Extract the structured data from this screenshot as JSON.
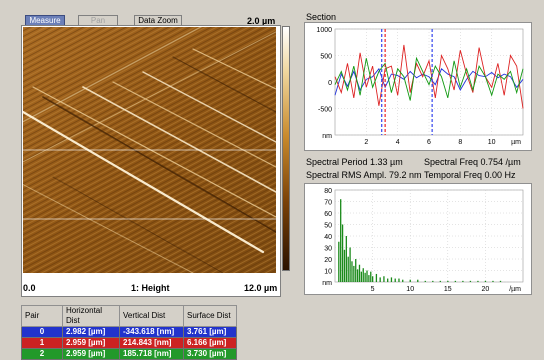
{
  "toolbar": {
    "measure_label": "Measure",
    "pan_label": "Pan",
    "data_zoom_label": "Data Zoom"
  },
  "image": {
    "scale_top": "2.0 µm",
    "x_start": "0.0",
    "channel_label": "1: Height",
    "x_end": "12.0 µm"
  },
  "section": {
    "title": "Section",
    "info": {
      "spectral_period": "Spectral Period 1.33 µm",
      "spectral_freq": "Spectral Freq 0.754 /µm",
      "spectral_rms": "Spectral RMS Ampl. 79.2 nm",
      "temporal_freq": "Temporal Freq 0.00 Hz"
    }
  },
  "chart_data": [
    {
      "type": "line",
      "title": "Section",
      "xlabel": "µm",
      "ylabel": "nm",
      "xlim": [
        0,
        12
      ],
      "ylim": [
        -1000,
        1000
      ],
      "x_ticks": [
        "2",
        "4",
        "6",
        "8",
        "10"
      ],
      "y_ticks": [
        "1000",
        "500",
        "0",
        "-500",
        "nm"
      ],
      "x": [
        0,
        0.4,
        0.8,
        1.2,
        1.6,
        2.0,
        2.4,
        2.8,
        3.2,
        3.6,
        4.0,
        4.4,
        4.8,
        5.2,
        5.6,
        6.0,
        6.4,
        6.8,
        7.2,
        7.6,
        8.0,
        8.4,
        8.8,
        9.2,
        9.6,
        10.0,
        10.4,
        10.8,
        11.2,
        11.6,
        12.0
      ],
      "series": [
        {
          "color": "#2233dd",
          "values": [
            -250,
            150,
            -80,
            200,
            -150,
            50,
            100,
            250,
            -100,
            150,
            120,
            50,
            200,
            80,
            150,
            100,
            -50,
            250,
            150,
            100,
            -150,
            50,
            200,
            120,
            100,
            180,
            80,
            150,
            100,
            -100,
            50
          ]
        },
        {
          "color": "#dd2222",
          "values": [
            100,
            -200,
            350,
            -300,
            550,
            -100,
            300,
            -450,
            250,
            300,
            -250,
            700,
            -200,
            350,
            100,
            400,
            -300,
            500,
            250,
            -150,
            600,
            150,
            -200,
            650,
            100,
            -100,
            350,
            -250,
            500,
            300,
            -500
          ]
        },
        {
          "color": "#119911",
          "values": [
            -50,
            200,
            -150,
            300,
            -250,
            450,
            -100,
            200,
            350,
            -200,
            250,
            100,
            -350,
            450,
            200,
            -50,
            300,
            100,
            -300,
            400,
            -100,
            250,
            -150,
            300,
            100,
            -250,
            150,
            50,
            200,
            -200,
            250
          ]
        }
      ],
      "markers": [
        {
          "x": 2.982,
          "color": "#3344ee"
        },
        {
          "x": 3.2,
          "color": "#ee2222"
        },
        {
          "x": 6.2,
          "color": "#3344ee"
        }
      ]
    },
    {
      "type": "bar",
      "xlabel": "/µm",
      "ylabel": "nm",
      "xlim": [
        0,
        25
      ],
      "ylim": [
        0,
        80
      ],
      "x_ticks": [
        "5",
        "10",
        "15",
        "20"
      ],
      "y_ticks": [
        "80",
        "70",
        "60",
        "50",
        "40",
        "30",
        "20",
        "10",
        "nm"
      ],
      "bars": [
        [
          0.5,
          35
        ],
        [
          0.75,
          72
        ],
        [
          1.0,
          50
        ],
        [
          1.25,
          28
        ],
        [
          1.5,
          40
        ],
        [
          1.75,
          22
        ],
        [
          2.0,
          30
        ],
        [
          2.25,
          18
        ],
        [
          2.5,
          14
        ],
        [
          2.75,
          20
        ],
        [
          3.0,
          11
        ],
        [
          3.25,
          15
        ],
        [
          3.5,
          9
        ],
        [
          3.75,
          12
        ],
        [
          4.0,
          8
        ],
        [
          4.25,
          10
        ],
        [
          4.5,
          6
        ],
        [
          4.75,
          9
        ],
        [
          5.0,
          5
        ],
        [
          5.5,
          7
        ],
        [
          6.0,
          4
        ],
        [
          6.5,
          5
        ],
        [
          7.0,
          3
        ],
        [
          7.5,
          4
        ],
        [
          8.0,
          3
        ],
        [
          8.5,
          3
        ],
        [
          9.0,
          2
        ],
        [
          10.0,
          2
        ],
        [
          11.0,
          2
        ],
        [
          12.0,
          1
        ],
        [
          13.0,
          1
        ],
        [
          14.0,
          1
        ],
        [
          15.0,
          1
        ],
        [
          16.0,
          1
        ],
        [
          17.0,
          1
        ],
        [
          18.0,
          1
        ],
        [
          19.0,
          1
        ],
        [
          20.0,
          1
        ],
        [
          21.0,
          1
        ],
        [
          22.0,
          1
        ]
      ]
    }
  ],
  "table": {
    "headers": [
      "Pair",
      "Horizontal Dist",
      "Vertical Dist",
      "Surface Dist"
    ],
    "rows": [
      {
        "pair": "0",
        "horizontal": "2.982 [µm]",
        "vertical": "-343.618 [nm]",
        "surface": "3.761 [µm]",
        "color": "#2233cc"
      },
      {
        "pair": "1",
        "horizontal": "2.959 [µm]",
        "vertical": "214.843 [nm]",
        "surface": "6.166 [µm]",
        "color": "#cc2222"
      },
      {
        "pair": "2",
        "horizontal": "2.959 [µm]",
        "vertical": "185.718 [nm]",
        "surface": "3.730 [µm]",
        "color": "#22992a"
      }
    ]
  }
}
